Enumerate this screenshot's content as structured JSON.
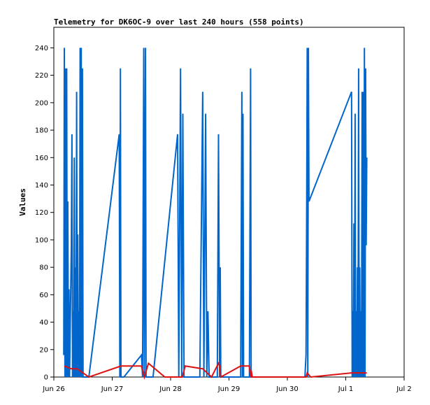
{
  "chart_data": {
    "type": "line",
    "title": "Telemetry for DK6OC-9 over last 240 hours (558 points)",
    "xlabel": "",
    "ylabel": "Values",
    "xlim": [
      "Jun 26",
      "Jul 2"
    ],
    "ylim": [
      0,
      255
    ],
    "x_ticks": [
      "Jun 26",
      "Jun 27",
      "Jun 28",
      "Jun 29",
      "Jun 30",
      "Jul 1",
      "Jul 2"
    ],
    "y_ticks": [
      0,
      20,
      40,
      60,
      80,
      100,
      120,
      140,
      160,
      180,
      200,
      220,
      240
    ],
    "grid": false,
    "legend": "none",
    "series": [
      {
        "color": "#0066cc",
        "points": [
          [
            0.17,
            16
          ],
          [
            0.18,
            240
          ],
          [
            0.19,
            0
          ],
          [
            0.2,
            225
          ],
          [
            0.21,
            0
          ],
          [
            0.22,
            225
          ],
          [
            0.23,
            0
          ],
          [
            0.24,
            128
          ],
          [
            0.25,
            0
          ],
          [
            0.26,
            64
          ],
          [
            0.27,
            0
          ],
          [
            0.3,
            96
          ],
          [
            0.31,
            177
          ],
          [
            0.32,
            0
          ],
          [
            0.33,
            48
          ],
          [
            0.34,
            0
          ],
          [
            0.35,
            160
          ],
          [
            0.36,
            0
          ],
          [
            0.37,
            80
          ],
          [
            0.38,
            0
          ],
          [
            0.39,
            208
          ],
          [
            0.4,
            0
          ],
          [
            0.41,
            104
          ],
          [
            0.42,
            0
          ],
          [
            0.43,
            48
          ],
          [
            0.44,
            0
          ],
          [
            0.45,
            240
          ],
          [
            0.46,
            0
          ],
          [
            0.47,
            240
          ],
          [
            0.48,
            0
          ],
          [
            0.49,
            225
          ],
          [
            0.5,
            0
          ],
          [
            0.6,
            0
          ],
          [
            1.12,
            177
          ],
          [
            1.13,
            0
          ],
          [
            1.14,
            225
          ],
          [
            1.15,
            0
          ],
          [
            1.2,
            0
          ],
          [
            1.5,
            16
          ],
          [
            1.52,
            0
          ],
          [
            1.54,
            240
          ],
          [
            1.55,
            0
          ],
          [
            1.57,
            240
          ],
          [
            1.58,
            0
          ],
          [
            1.7,
            0
          ],
          [
            2.12,
            177
          ],
          [
            2.14,
            0
          ],
          [
            2.17,
            225
          ],
          [
            2.19,
            0
          ],
          [
            2.21,
            192
          ],
          [
            2.23,
            0
          ],
          [
            2.5,
            0
          ],
          [
            2.55,
            208
          ],
          [
            2.57,
            0
          ],
          [
            2.6,
            192
          ],
          [
            2.62,
            0
          ],
          [
            2.64,
            48
          ],
          [
            2.66,
            0
          ],
          [
            2.8,
            0
          ],
          [
            2.82,
            177
          ],
          [
            2.84,
            0
          ],
          [
            2.85,
            80
          ],
          [
            2.86,
            0
          ],
          [
            3.2,
            0
          ],
          [
            3.22,
            208
          ],
          [
            3.23,
            0
          ],
          [
            3.24,
            192
          ],
          [
            3.25,
            0
          ],
          [
            3.35,
            0
          ],
          [
            3.37,
            225
          ],
          [
            3.38,
            0
          ],
          [
            4.3,
            0
          ],
          [
            4.32,
            16
          ],
          [
            4.33,
            120
          ],
          [
            4.34,
            240
          ],
          [
            4.35,
            0
          ],
          [
            4.36,
            240
          ],
          [
            4.37,
            128
          ],
          [
            5.1,
            208
          ],
          [
            5.11,
            0
          ],
          [
            5.12,
            48
          ],
          [
            5.13,
            0
          ],
          [
            5.14,
            112
          ],
          [
            5.15,
            0
          ],
          [
            5.16,
            192
          ],
          [
            5.17,
            0
          ],
          [
            5.18,
            48
          ],
          [
            5.19,
            0
          ],
          [
            5.2,
            80
          ],
          [
            5.21,
            0
          ],
          [
            5.22,
            225
          ],
          [
            5.23,
            0
          ],
          [
            5.24,
            80
          ],
          [
            5.25,
            0
          ],
          [
            5.26,
            48
          ],
          [
            5.27,
            0
          ],
          [
            5.28,
            208
          ],
          [
            5.29,
            0
          ],
          [
            5.3,
            208
          ],
          [
            5.31,
            0
          ],
          [
            5.32,
            240
          ],
          [
            5.33,
            0
          ],
          [
            5.34,
            225
          ],
          [
            5.35,
            96
          ],
          [
            5.36,
            160
          ]
        ]
      },
      {
        "color": "#dd1111",
        "points": [
          [
            0.18,
            8
          ],
          [
            0.3,
            6
          ],
          [
            0.4,
            6
          ],
          [
            0.6,
            0
          ],
          [
            1.15,
            8
          ],
          [
            1.5,
            8
          ],
          [
            1.55,
            0
          ],
          [
            1.62,
            10
          ],
          [
            1.9,
            0
          ],
          [
            2.2,
            0
          ],
          [
            2.25,
            8
          ],
          [
            2.55,
            6
          ],
          [
            2.7,
            0
          ],
          [
            2.82,
            10
          ],
          [
            2.84,
            8
          ],
          [
            2.86,
            0
          ],
          [
            3.2,
            8
          ],
          [
            3.35,
            8
          ],
          [
            3.37,
            0
          ],
          [
            3.38,
            5
          ],
          [
            3.4,
            0
          ],
          [
            4.3,
            0
          ],
          [
            4.32,
            0
          ],
          [
            4.34,
            3
          ],
          [
            4.4,
            0
          ],
          [
            5.1,
            3
          ],
          [
            5.36,
            3
          ]
        ]
      }
    ]
  }
}
